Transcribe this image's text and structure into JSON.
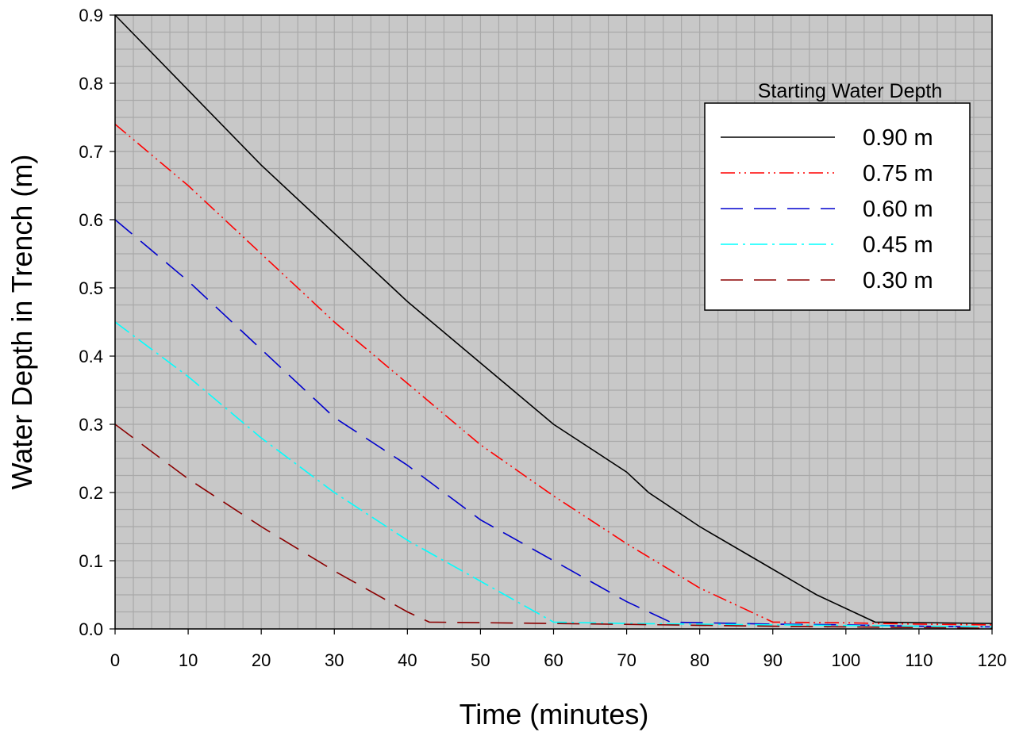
{
  "chart_data": {
    "type": "line",
    "xlabel": "Time (minutes)",
    "ylabel": "Water Depth in Trench (m)",
    "xlim": [
      0,
      120
    ],
    "ylim": [
      0,
      0.9
    ],
    "x_ticks": [
      "0",
      "10",
      "20",
      "30",
      "40",
      "50",
      "60",
      "70",
      "80",
      "90",
      "100",
      "110",
      "120"
    ],
    "y_ticks": [
      "0.0",
      "0.1",
      "0.2",
      "0.3",
      "0.4",
      "0.5",
      "0.6",
      "0.7",
      "0.8",
      "0.9"
    ],
    "grid": true,
    "grid_color": "#a9a9a9",
    "background_color": "#c8c8c8",
    "legend": {
      "title": "Starting Water Depth",
      "placement": "top-right"
    },
    "series": [
      {
        "name": "0.90 m",
        "color": "#000000",
        "dash": "solid",
        "x": [
          0,
          10,
          20,
          30,
          40,
          50,
          60,
          70,
          73,
          80,
          88,
          96,
          104,
          120
        ],
        "y": [
          0.9,
          0.79,
          0.68,
          0.58,
          0.48,
          0.39,
          0.3,
          0.23,
          0.2,
          0.15,
          0.1,
          0.05,
          0.01,
          0.008
        ]
      },
      {
        "name": "0.75 m",
        "color": "#ff0000",
        "dash": "dash-dot-dot",
        "x": [
          0,
          10,
          20,
          30,
          40,
          50,
          60,
          70,
          80,
          90,
          100,
          110,
          120
        ],
        "y": [
          0.74,
          0.65,
          0.55,
          0.45,
          0.36,
          0.27,
          0.195,
          0.125,
          0.06,
          0.01,
          0.009,
          0.007,
          0.006
        ]
      },
      {
        "name": "0.60 m",
        "color": "#0000cd",
        "dash": "long-dash",
        "x": [
          0,
          10,
          20,
          30,
          40,
          50,
          60,
          70,
          76,
          90,
          100,
          110,
          120
        ],
        "y": [
          0.6,
          0.51,
          0.41,
          0.31,
          0.24,
          0.16,
          0.1,
          0.04,
          0.01,
          0.007,
          0.006,
          0.004,
          0.003
        ]
      },
      {
        "name": "0.45 m",
        "color": "#00ffff",
        "dash": "dash-dot",
        "x": [
          0,
          10,
          20,
          30,
          40,
          50,
          60,
          70,
          90,
          100,
          110,
          120
        ],
        "y": [
          0.45,
          0.37,
          0.28,
          0.2,
          0.13,
          0.07,
          0.01,
          0.008,
          0.006,
          0.005,
          0.004,
          0.003
        ]
      },
      {
        "name": "0.30 m",
        "color": "#8b0000",
        "dash": "long-dash",
        "x": [
          0,
          10,
          20,
          30,
          40,
          43,
          60,
          90,
          100,
          110,
          120
        ],
        "y": [
          0.3,
          0.22,
          0.15,
          0.085,
          0.025,
          0.01,
          0.008,
          0.004,
          0.003,
          0.002,
          0.001
        ]
      }
    ]
  }
}
